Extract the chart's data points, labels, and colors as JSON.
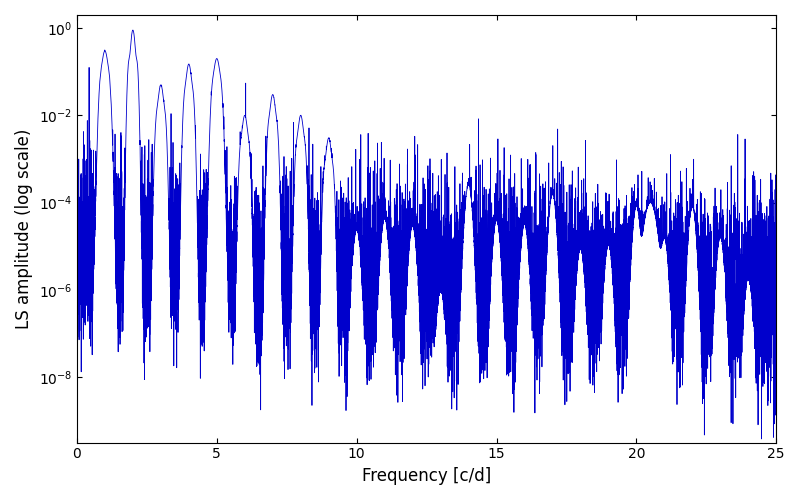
{
  "title": "",
  "xlabel": "Frequency [c/d]",
  "ylabel": "LS amplitude (log scale)",
  "xlim": [
    0,
    25
  ],
  "ylim_log": [
    -9.5,
    0.3
  ],
  "line_color": "#0000cc",
  "line_width": 0.6,
  "background_color": "#ffffff",
  "fig_width": 8.0,
  "fig_height": 5.0,
  "dpi": 100,
  "xticks": [
    0,
    5,
    10,
    15,
    20,
    25
  ],
  "seed": 42,
  "n_points": 12000,
  "freq_max": 25.0,
  "base_amplitude": 1e-05,
  "peak_frequencies": [
    1.0,
    2.0,
    3.0,
    4.0,
    5.0,
    6.0,
    7.0,
    8.0,
    9.0
  ],
  "peak_amplitudes": [
    0.3,
    0.9,
    0.05,
    0.15,
    0.2,
    0.01,
    0.03,
    0.01,
    0.003
  ],
  "peak_widths": [
    0.08,
    0.06,
    0.07,
    0.07,
    0.08,
    0.07,
    0.07,
    0.07,
    0.07
  ]
}
